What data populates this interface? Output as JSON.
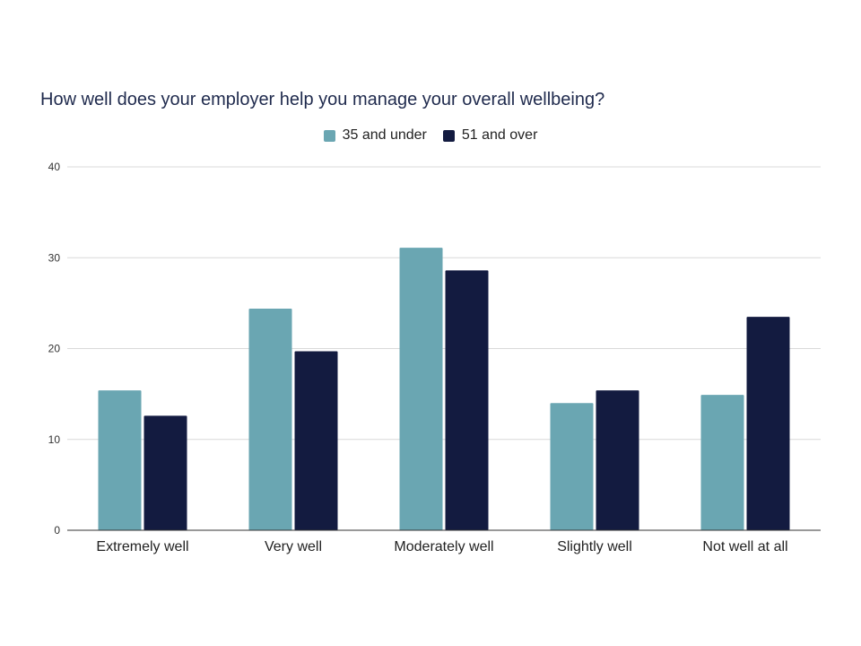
{
  "chart_data": {
    "type": "bar",
    "title": "How well does your employer help you manage your overall wellbeing?",
    "categories": [
      "Extremely well",
      "Very well",
      "Moderately well",
      "Slightly well",
      "Not well at all"
    ],
    "series": [
      {
        "name": "35 and under",
        "color": "#6aa6b2",
        "values": [
          15.4,
          24.4,
          31.1,
          14.0,
          14.9
        ]
      },
      {
        "name": "51 and over",
        "color": "#131b40",
        "values": [
          12.6,
          19.7,
          28.6,
          15.4,
          23.5
        ]
      }
    ],
    "yticks": [
      "0",
      "10",
      "20",
      "30",
      "40"
    ],
    "ylim": [
      0,
      40
    ],
    "grid": true,
    "legend": "top-center"
  }
}
